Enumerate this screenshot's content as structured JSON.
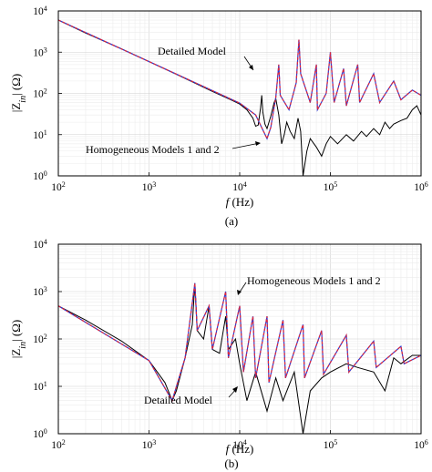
{
  "chart_data": [
    {
      "type": "line",
      "panel_label": "(a)",
      "xlabel_italic": "f",
      "xlabel_rest": " (Hz)",
      "ylabel": "|Z_in| (Ω)",
      "x_scale": "log",
      "y_scale": "log",
      "xlim": [
        100,
        1000000
      ],
      "ylim": [
        1,
        10000
      ],
      "grid": true,
      "x_ticks": [
        "10^2",
        "10^3",
        "10^4",
        "10^5",
        "10^6"
      ],
      "y_ticks": [
        "10^0",
        "10^1",
        "10^2",
        "10^3",
        "10^4"
      ],
      "annotations": [
        "Detailed Model",
        "Homogeneous Models 1 and 2"
      ],
      "series": [
        {
          "name": "Detailed Model",
          "color": "#000000",
          "points": [
            [
              100,
              6000
            ],
            [
              200,
              2900
            ],
            [
              500,
              1200
            ],
            [
              1000,
              590
            ],
            [
              2000,
              290
            ],
            [
              5000,
              112
            ],
            [
              8000,
              70
            ],
            [
              10000,
              55
            ],
            [
              12000,
              40
            ],
            [
              14000,
              25
            ],
            [
              15000,
              16
            ],
            [
              16000,
              17
            ],
            [
              17000,
              45
            ],
            [
              17500,
              90
            ],
            [
              18000,
              35
            ],
            [
              19000,
              18
            ],
            [
              20000,
              14
            ],
            [
              22000,
              28
            ],
            [
              24000,
              60
            ],
            [
              25000,
              75
            ],
            [
              27000,
              30
            ],
            [
              29000,
              6
            ],
            [
              31000,
              10
            ],
            [
              33000,
              20
            ],
            [
              36000,
              12
            ],
            [
              40000,
              8
            ],
            [
              44000,
              25
            ],
            [
              47000,
              12
            ],
            [
              50000,
              1
            ],
            [
              55000,
              4
            ],
            [
              60000,
              8
            ],
            [
              70000,
              5
            ],
            [
              80000,
              3
            ],
            [
              90000,
              6
            ],
            [
              100000,
              9
            ],
            [
              120000,
              6
            ],
            [
              150000,
              10
            ],
            [
              180000,
              7
            ],
            [
              220000,
              12
            ],
            [
              250000,
              9
            ],
            [
              300000,
              14
            ],
            [
              350000,
              10
            ],
            [
              400000,
              20
            ],
            [
              450000,
              14
            ],
            [
              500000,
              18
            ],
            [
              600000,
              22
            ],
            [
              700000,
              25
            ],
            [
              800000,
              40
            ],
            [
              900000,
              50
            ],
            [
              1000000,
              30
            ]
          ]
        },
        {
          "name": "Homogeneous Models 1 and 2",
          "color": "#7a1fa8",
          "points": [
            [
              100,
              6000
            ],
            [
              1000,
              590
            ],
            [
              10000,
              58
            ],
            [
              15000,
              30
            ],
            [
              20000,
              8
            ],
            [
              22000,
              15
            ],
            [
              25000,
              80
            ],
            [
              27000,
              500
            ],
            [
              28000,
              90
            ],
            [
              35000,
              40
            ],
            [
              42000,
              180
            ],
            [
              45000,
              2000
            ],
            [
              47000,
              300
            ],
            [
              60000,
              60
            ],
            [
              70000,
              500
            ],
            [
              72000,
              40
            ],
            [
              90000,
              100
            ],
            [
              100000,
              1000
            ],
            [
              110000,
              60
            ],
            [
              140000,
              400
            ],
            [
              150000,
              50
            ],
            [
              200000,
              500
            ],
            [
              210000,
              60
            ],
            [
              300000,
              300
            ],
            [
              350000,
              60
            ],
            [
              500000,
              200
            ],
            [
              600000,
              70
            ],
            [
              800000,
              120
            ],
            [
              1000000,
              90
            ]
          ]
        }
      ]
    },
    {
      "type": "line",
      "panel_label": "(b)",
      "xlabel_italic": "f",
      "xlabel_rest": " (Hz)",
      "ylabel": "|Z_in| (Ω)",
      "x_scale": "log",
      "y_scale": "log",
      "xlim": [
        100,
        1000000
      ],
      "ylim": [
        1,
        10000
      ],
      "grid": true,
      "x_ticks": [
        "10^2",
        "10^3",
        "10^4",
        "10^5",
        "10^6"
      ],
      "y_ticks": [
        "10^0",
        "10^1",
        "10^2",
        "10^3",
        "10^4"
      ],
      "annotations": [
        "Homogeneous Models 1 and 2",
        "Detailed Model"
      ],
      "series": [
        {
          "name": "Detailed Model",
          "color": "#000000",
          "points": [
            [
              100,
              500
            ],
            [
              200,
              250
            ],
            [
              500,
              90
            ],
            [
              1000,
              35
            ],
            [
              1500,
              12
            ],
            [
              1800,
              5
            ],
            [
              2000,
              8
            ],
            [
              2500,
              40
            ],
            [
              3000,
              200
            ],
            [
              3200,
              1500
            ],
            [
              3400,
              150
            ],
            [
              4000,
              100
            ],
            [
              4600,
              500
            ],
            [
              5000,
              60
            ],
            [
              6000,
              50
            ],
            [
              7000,
              300
            ],
            [
              7500,
              60
            ],
            [
              9000,
              100
            ],
            [
              10000,
              30
            ],
            [
              12000,
              5
            ],
            [
              15000,
              20
            ],
            [
              20000,
              3
            ],
            [
              25000,
              15
            ],
            [
              30000,
              5
            ],
            [
              40000,
              20
            ],
            [
              50000,
              1
            ],
            [
              60000,
              8
            ],
            [
              80000,
              15
            ],
            [
              100000,
              20
            ],
            [
              150000,
              30
            ],
            [
              200000,
              25
            ],
            [
              300000,
              20
            ],
            [
              400000,
              8
            ],
            [
              500000,
              40
            ],
            [
              600000,
              30
            ],
            [
              800000,
              45
            ],
            [
              1000000,
              45
            ]
          ]
        },
        {
          "name": "Homogeneous Models 1 and 2",
          "color": "#7a1fa8",
          "points": [
            [
              100,
              500
            ],
            [
              1000,
              35
            ],
            [
              1800,
              5
            ],
            [
              2500,
              40
            ],
            [
              3200,
              1500
            ],
            [
              3400,
              150
            ],
            [
              4600,
              500
            ],
            [
              5000,
              60
            ],
            [
              7000,
              1000
            ],
            [
              7500,
              40
            ],
            [
              10000,
              500
            ],
            [
              11000,
              20
            ],
            [
              14000,
              300
            ],
            [
              15000,
              15
            ],
            [
              20000,
              300
            ],
            [
              21000,
              12
            ],
            [
              30000,
              250
            ],
            [
              32000,
              15
            ],
            [
              50000,
              200
            ],
            [
              52000,
              15
            ],
            [
              80000,
              150
            ],
            [
              84000,
              18
            ],
            [
              150000,
              120
            ],
            [
              160000,
              20
            ],
            [
              300000,
              90
            ],
            [
              320000,
              25
            ],
            [
              600000,
              70
            ],
            [
              650000,
              30
            ],
            [
              1000000,
              45
            ]
          ]
        }
      ]
    }
  ]
}
